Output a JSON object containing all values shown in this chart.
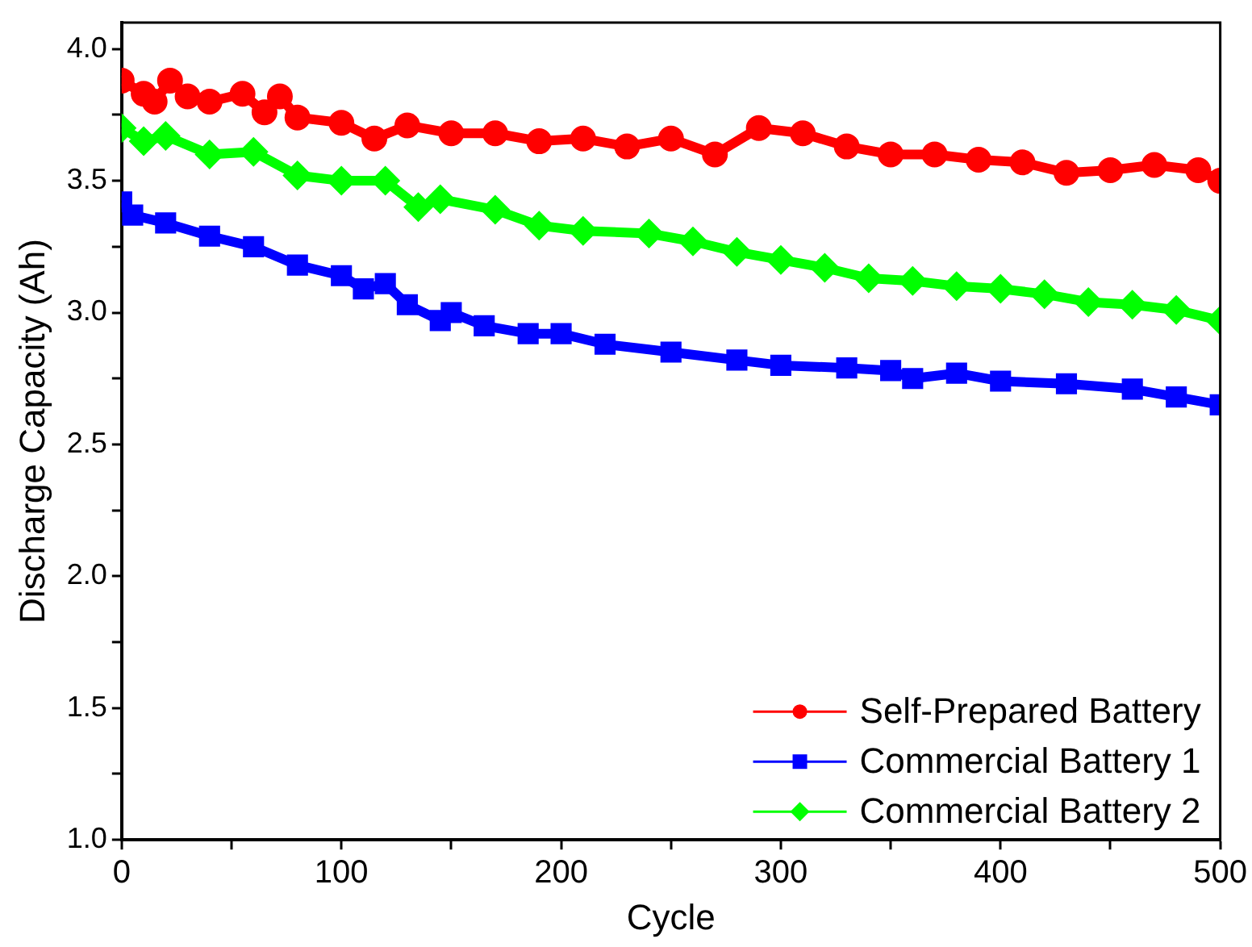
{
  "chart_data": {
    "type": "line",
    "xlabel": "Cycle",
    "ylabel": "Discharge Capacity (Ah)",
    "xlim": [
      0,
      500
    ],
    "xticks": [
      0,
      {
        "value": 50,
        "label": null
      },
      100,
      {
        "value": 150,
        "label": null
      },
      200,
      {
        "value": 250,
        "label": null
      },
      300,
      {
        "value": 350,
        "label": null
      },
      400,
      {
        "value": 450,
        "label": null
      },
      500
    ],
    "ylim": [
      1.0,
      4.1
    ],
    "yticks": [
      {
        "value": 1.0,
        "label": "1.0"
      },
      {
        "value": 1.25,
        "label": null
      },
      1.5,
      {
        "value": 1.75,
        "label": null
      },
      {
        "value": 2.0,
        "label": "2.0"
      },
      {
        "value": 2.25,
        "label": null
      },
      2.5,
      {
        "value": 2.75,
        "label": null
      },
      {
        "value": 3.0,
        "label": "3.0"
      },
      {
        "value": 3.25,
        "label": null
      },
      3.5,
      {
        "value": 3.75,
        "label": null
      },
      {
        "value": 4.0,
        "label": "4.0"
      }
    ],
    "grid": false,
    "legend": "bottom right",
    "line_style": "solid",
    "series": [
      {
        "name": "Self-Prepared Battery",
        "color": "#ff0000",
        "marker": "circle",
        "x": [
          0,
          10,
          15,
          22,
          30,
          40,
          55,
          65,
          72,
          80,
          100,
          115,
          130,
          150,
          170,
          190,
          210,
          230,
          250,
          270,
          290,
          310,
          330,
          350,
          370,
          390,
          410,
          430,
          450,
          470,
          490,
          500
        ],
        "values": [
          3.88,
          3.83,
          3.8,
          3.88,
          3.82,
          3.8,
          3.83,
          3.76,
          3.82,
          3.74,
          3.72,
          3.66,
          3.71,
          3.68,
          3.68,
          3.65,
          3.66,
          3.63,
          3.66,
          3.6,
          3.7,
          3.68,
          3.63,
          3.6,
          3.6,
          3.58,
          3.57,
          3.53,
          3.54,
          3.56,
          3.54,
          3.5
        ]
      },
      {
        "name": "Commercial Battery 1",
        "color": "#0000ff",
        "marker": "square",
        "x": [
          0,
          5,
          20,
          40,
          60,
          80,
          100,
          110,
          120,
          130,
          145,
          150,
          165,
          185,
          200,
          220,
          250,
          280,
          300,
          330,
          350,
          360,
          380,
          400,
          430,
          460,
          480,
          500
        ],
        "values": [
          3.42,
          3.37,
          3.34,
          3.29,
          3.25,
          3.18,
          3.14,
          3.09,
          3.11,
          3.03,
          2.97,
          3.0,
          2.95,
          2.92,
          2.92,
          2.88,
          2.85,
          2.82,
          2.8,
          2.79,
          2.78,
          2.75,
          2.77,
          2.74,
          2.73,
          2.71,
          2.68,
          2.65
        ]
      },
      {
        "name": "Commercial Battery 2",
        "color": "#00ff00",
        "marker": "diamond",
        "x": [
          0,
          10,
          20,
          40,
          60,
          80,
          100,
          120,
          135,
          145,
          170,
          190,
          210,
          240,
          260,
          280,
          300,
          320,
          340,
          360,
          380,
          400,
          420,
          440,
          460,
          480,
          500
        ],
        "values": [
          3.7,
          3.65,
          3.67,
          3.6,
          3.61,
          3.52,
          3.5,
          3.5,
          3.4,
          3.43,
          3.39,
          3.33,
          3.31,
          3.3,
          3.27,
          3.23,
          3.2,
          3.17,
          3.13,
          3.12,
          3.1,
          3.09,
          3.07,
          3.04,
          3.03,
          3.01,
          2.97
        ]
      }
    ]
  }
}
